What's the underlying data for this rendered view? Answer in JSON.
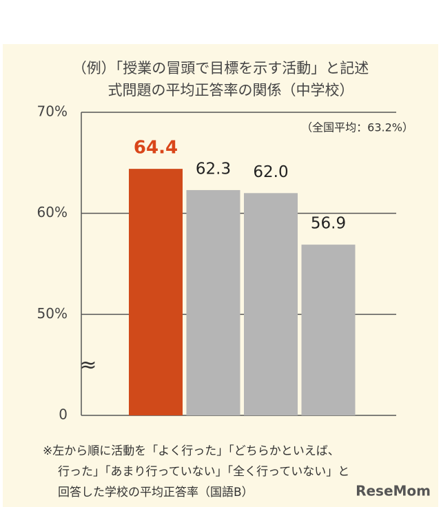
{
  "chart_data": {
    "type": "bar",
    "title": [
      "（例）「授業の冒頭で目標を示す活動」と記述",
      "式問題の平均正答率の関係（中学校）"
    ],
    "annotation": "（全国平均：63.2%）",
    "categories": [
      null,
      null,
      null,
      null
    ],
    "values": [
      64.4,
      62.3,
      62.0,
      56.9
    ],
    "value_labels": [
      "64.4",
      "62.3",
      "62.0",
      "56.9"
    ],
    "colors": [
      "#d04a1a",
      "#b5b5b5",
      "#b5b5b5",
      "#b5b5b5"
    ],
    "value_label_colors": [
      "#d9461a",
      "#222222",
      "#222222",
      "#222222"
    ],
    "ylim": [
      0,
      70
    ],
    "yticks": [
      0,
      {
        "value": 50,
        "label": "50%"
      },
      {
        "value": 60,
        "label": "60%"
      },
      {
        "value": 70,
        "label": "70%"
      }
    ],
    "axis_break": [
      0,
      50
    ],
    "break_symbol": "≈",
    "grid": true,
    "note": [
      "※左から順に活動を「よく行った」「どちらかといえば、",
      "行った」「あまり行っていない」「全く行っていない」と",
      "回答した学校の平均正答率（国語B）"
    ],
    "logo": "ReseMom"
  }
}
